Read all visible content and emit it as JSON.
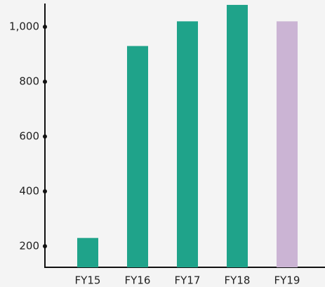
{
  "chart_data": {
    "type": "bar",
    "categories": [
      "FY15",
      "FY16",
      "FY17",
      "FY18",
      "FY19"
    ],
    "values": [
      230,
      930,
      1020,
      1080,
      1020
    ],
    "colors": [
      "#1fa38a",
      "#1fa38a",
      "#1fa38a",
      "#1fa38a",
      "#cbb4d4"
    ],
    "ylim": [
      123,
      1085
    ],
    "yticks": [
      200,
      400,
      600,
      800,
      {
        "value": 1000,
        "label": "1,000"
      }
    ],
    "grid": false
  }
}
